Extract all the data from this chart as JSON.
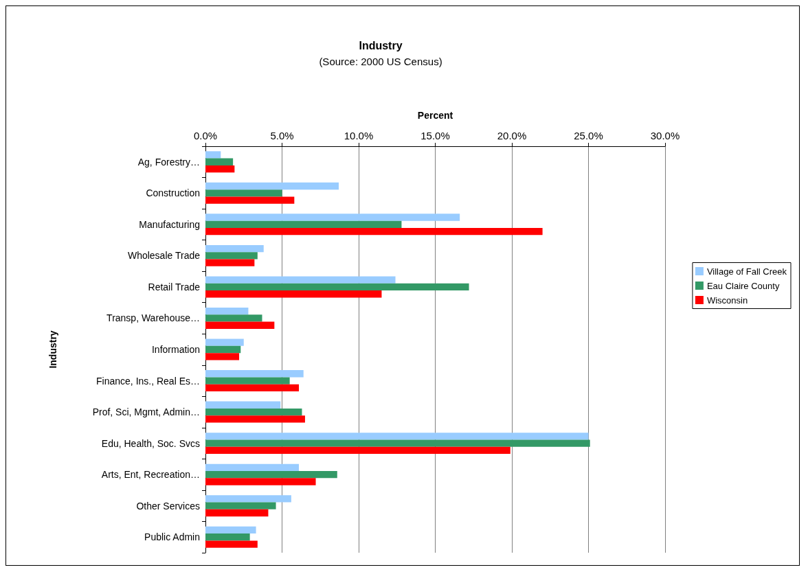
{
  "chart_data": {
    "type": "bar",
    "orientation": "horizontal",
    "title": "Industry",
    "subtitle": "(Source: 2000 US Census)",
    "xlabel": "Percent",
    "ylabel": "Industry",
    "categories": [
      "Ag, Forestry…",
      "Construction",
      "Manufacturing",
      "Wholesale Trade",
      "Retail Trade",
      "Transp, Warehouse…",
      "Information",
      "Finance, Ins., Real Es…",
      "Prof, Sci, Mgmt, Admin…",
      "Edu, Health, Soc. Svcs",
      "Arts, Ent, Recreation…",
      "Other Services",
      "Public Admin"
    ],
    "series": [
      {
        "name": "Village of Fall Creek",
        "color": "#99ccff",
        "values": [
          1.0,
          8.7,
          16.6,
          3.8,
          12.4,
          2.8,
          2.5,
          6.4,
          4.9,
          25.0,
          6.1,
          5.6,
          3.3
        ]
      },
      {
        "name": "Eau Claire County",
        "color": "#339966",
        "values": [
          1.8,
          5.0,
          12.8,
          3.4,
          17.2,
          3.7,
          2.3,
          5.5,
          6.3,
          25.1,
          8.6,
          4.6,
          2.9
        ]
      },
      {
        "name": "Wisconsin",
        "color": "#ff0000",
        "values": [
          1.9,
          5.8,
          22.0,
          3.2,
          11.5,
          4.5,
          2.2,
          6.1,
          6.5,
          19.9,
          7.2,
          4.1,
          3.4
        ]
      }
    ],
    "xlim": [
      0,
      30
    ],
    "xticks": [
      {
        "value": 0,
        "label": "0.0%"
      },
      {
        "value": 5,
        "label": "5.0%"
      },
      {
        "value": 10,
        "label": "10.0%"
      },
      {
        "value": 15,
        "label": "15.0%"
      },
      {
        "value": 20,
        "label": "20.0%"
      },
      {
        "value": 25,
        "label": "25.0%"
      },
      {
        "value": 30,
        "label": "30.0%"
      }
    ],
    "grid": "x",
    "legend": "right"
  }
}
